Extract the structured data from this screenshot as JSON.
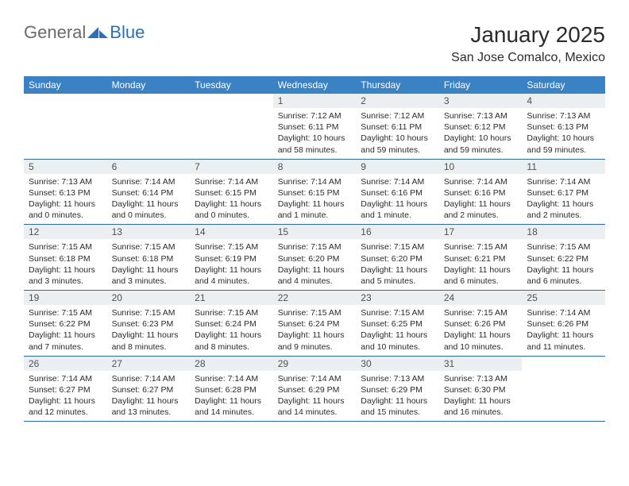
{
  "logo": {
    "general": "General",
    "blue": "Blue"
  },
  "title": "January 2025",
  "location": "San Jose Comalco, Mexico",
  "colors": {
    "header_bg": "#3b82c4",
    "header_text": "#ffffff",
    "daynum_bg": "#eceff1",
    "rule": "#2a6aa8",
    "logo_blue": "#2a70b8",
    "logo_gray": "#6a6a6a"
  },
  "day_names": [
    "Sunday",
    "Monday",
    "Tuesday",
    "Wednesday",
    "Thursday",
    "Friday",
    "Saturday"
  ],
  "weeks": [
    [
      null,
      null,
      null,
      {
        "n": "1",
        "sr": "7:12 AM",
        "ss": "6:11 PM",
        "dl": "10 hours and 58 minutes."
      },
      {
        "n": "2",
        "sr": "7:12 AM",
        "ss": "6:11 PM",
        "dl": "10 hours and 59 minutes."
      },
      {
        "n": "3",
        "sr": "7:13 AM",
        "ss": "6:12 PM",
        "dl": "10 hours and 59 minutes."
      },
      {
        "n": "4",
        "sr": "7:13 AM",
        "ss": "6:13 PM",
        "dl": "10 hours and 59 minutes."
      }
    ],
    [
      {
        "n": "5",
        "sr": "7:13 AM",
        "ss": "6:13 PM",
        "dl": "11 hours and 0 minutes."
      },
      {
        "n": "6",
        "sr": "7:14 AM",
        "ss": "6:14 PM",
        "dl": "11 hours and 0 minutes."
      },
      {
        "n": "7",
        "sr": "7:14 AM",
        "ss": "6:15 PM",
        "dl": "11 hours and 0 minutes."
      },
      {
        "n": "8",
        "sr": "7:14 AM",
        "ss": "6:15 PM",
        "dl": "11 hours and 1 minute."
      },
      {
        "n": "9",
        "sr": "7:14 AM",
        "ss": "6:16 PM",
        "dl": "11 hours and 1 minute."
      },
      {
        "n": "10",
        "sr": "7:14 AM",
        "ss": "6:16 PM",
        "dl": "11 hours and 2 minutes."
      },
      {
        "n": "11",
        "sr": "7:14 AM",
        "ss": "6:17 PM",
        "dl": "11 hours and 2 minutes."
      }
    ],
    [
      {
        "n": "12",
        "sr": "7:15 AM",
        "ss": "6:18 PM",
        "dl": "11 hours and 3 minutes."
      },
      {
        "n": "13",
        "sr": "7:15 AM",
        "ss": "6:18 PM",
        "dl": "11 hours and 3 minutes."
      },
      {
        "n": "14",
        "sr": "7:15 AM",
        "ss": "6:19 PM",
        "dl": "11 hours and 4 minutes."
      },
      {
        "n": "15",
        "sr": "7:15 AM",
        "ss": "6:20 PM",
        "dl": "11 hours and 4 minutes."
      },
      {
        "n": "16",
        "sr": "7:15 AM",
        "ss": "6:20 PM",
        "dl": "11 hours and 5 minutes."
      },
      {
        "n": "17",
        "sr": "7:15 AM",
        "ss": "6:21 PM",
        "dl": "11 hours and 6 minutes."
      },
      {
        "n": "18",
        "sr": "7:15 AM",
        "ss": "6:22 PM",
        "dl": "11 hours and 6 minutes."
      }
    ],
    [
      {
        "n": "19",
        "sr": "7:15 AM",
        "ss": "6:22 PM",
        "dl": "11 hours and 7 minutes."
      },
      {
        "n": "20",
        "sr": "7:15 AM",
        "ss": "6:23 PM",
        "dl": "11 hours and 8 minutes."
      },
      {
        "n": "21",
        "sr": "7:15 AM",
        "ss": "6:24 PM",
        "dl": "11 hours and 8 minutes."
      },
      {
        "n": "22",
        "sr": "7:15 AM",
        "ss": "6:24 PM",
        "dl": "11 hours and 9 minutes."
      },
      {
        "n": "23",
        "sr": "7:15 AM",
        "ss": "6:25 PM",
        "dl": "11 hours and 10 minutes."
      },
      {
        "n": "24",
        "sr": "7:15 AM",
        "ss": "6:26 PM",
        "dl": "11 hours and 10 minutes."
      },
      {
        "n": "25",
        "sr": "7:14 AM",
        "ss": "6:26 PM",
        "dl": "11 hours and 11 minutes."
      }
    ],
    [
      {
        "n": "26",
        "sr": "7:14 AM",
        "ss": "6:27 PM",
        "dl": "11 hours and 12 minutes."
      },
      {
        "n": "27",
        "sr": "7:14 AM",
        "ss": "6:27 PM",
        "dl": "11 hours and 13 minutes."
      },
      {
        "n": "28",
        "sr": "7:14 AM",
        "ss": "6:28 PM",
        "dl": "11 hours and 14 minutes."
      },
      {
        "n": "29",
        "sr": "7:14 AM",
        "ss": "6:29 PM",
        "dl": "11 hours and 14 minutes."
      },
      {
        "n": "30",
        "sr": "7:13 AM",
        "ss": "6:29 PM",
        "dl": "11 hours and 15 minutes."
      },
      {
        "n": "31",
        "sr": "7:13 AM",
        "ss": "6:30 PM",
        "dl": "11 hours and 16 minutes."
      },
      null
    ]
  ],
  "labels": {
    "sunrise": "Sunrise: ",
    "sunset": "Sunset: ",
    "daylight": "Daylight: "
  }
}
